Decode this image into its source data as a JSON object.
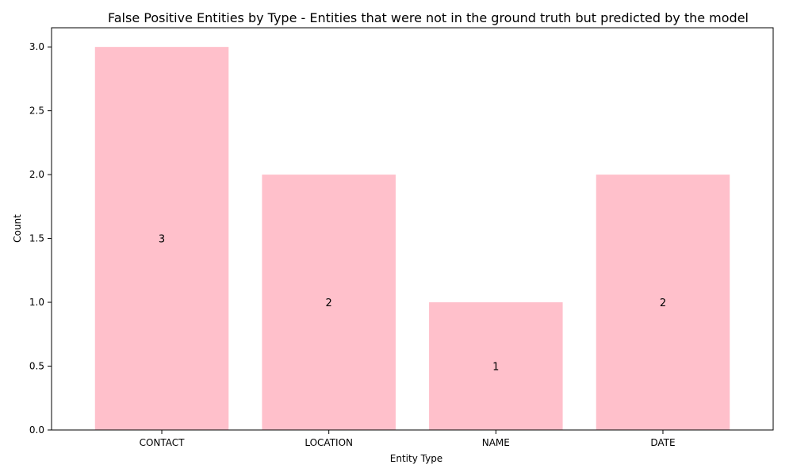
{
  "chart_data": {
    "type": "bar",
    "title": "False Positive Entities by Type - Entities that were not in the ground truth but predicted by the model",
    "xlabel": "Entity Type",
    "ylabel": "Count",
    "categories": [
      "CONTACT",
      "LOCATION",
      "NAME",
      "DATE"
    ],
    "values": [
      3,
      2,
      1,
      2
    ],
    "data_labels": [
      "3",
      "2",
      "1",
      "2"
    ],
    "ylim": [
      0,
      3.15
    ],
    "yticks": [
      0.0,
      0.5,
      1.0,
      1.5,
      2.0,
      2.5,
      3.0
    ],
    "ytick_labels": [
      "0.0",
      "0.5",
      "1.0",
      "1.5",
      "2.0",
      "2.5",
      "3.0"
    ],
    "bar_color": "#ffc0cb",
    "grid": false,
    "legend": "none"
  }
}
